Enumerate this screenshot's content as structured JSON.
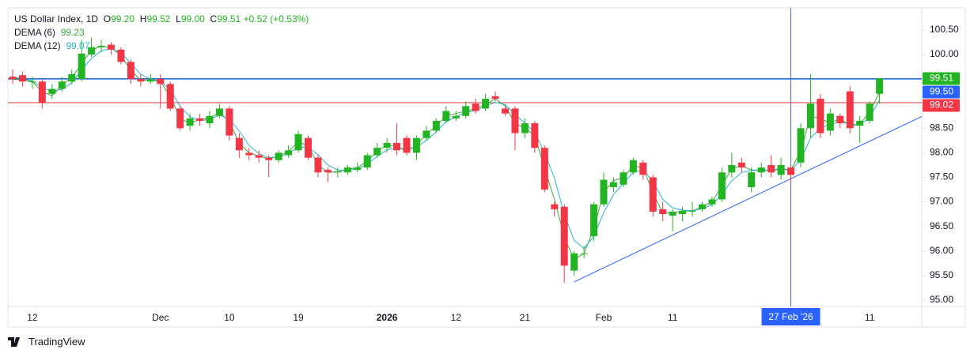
{
  "chart_data": {
    "type": "candlestick",
    "header": {
      "symbol": "US Dollar Index, 1D",
      "open_label": "O",
      "open": "99.20",
      "high_label": "H",
      "high": "99.52",
      "low_label": "L",
      "low": "99.00",
      "close_label": "C",
      "close": "99.51",
      "change": "+0.52 (+0.53%)"
    },
    "categories": [
      null,
      null,
      "12",
      null,
      null,
      null,
      null,
      null,
      null,
      null,
      null,
      null,
      null,
      null,
      null,
      "Dec",
      null,
      null,
      null,
      null,
      null,
      null,
      "10",
      null,
      null,
      null,
      null,
      null,
      null,
      "19",
      null,
      null,
      null,
      null,
      null,
      null,
      null,
      null,
      "2026",
      null,
      null,
      null,
      null,
      null,
      null,
      "12",
      null,
      null,
      null,
      null,
      null,
      null,
      "21",
      null,
      null,
      null,
      null,
      null,
      null,
      null,
      "Feb",
      null,
      null,
      null,
      null,
      null,
      null,
      "11",
      null,
      null,
      null,
      null,
      null,
      null,
      null,
      null,
      null,
      null,
      null,
      "27 Feb '26",
      null,
      null,
      null,
      null,
      null,
      null,
      null,
      "11",
      null
    ],
    "open": [
      99.55,
      99.58,
      99.45,
      99.45,
      99.2,
      99.3,
      99.45,
      99.5,
      100.0,
      100.15,
      100.2,
      100.1,
      99.85,
      99.5,
      99.45,
      99.5,
      99.4,
      98.9,
      98.55,
      98.7,
      98.6,
      98.75,
      98.9,
      98.3,
      98.0,
      97.95,
      97.9,
      97.85,
      97.95,
      98.05,
      98.3,
      97.9,
      97.65,
      97.6,
      97.6,
      97.65,
      97.7,
      97.95,
      98.1,
      98.2,
      98.3,
      98.0,
      98.3,
      98.45,
      98.65,
      98.7,
      98.75,
      99.0,
      98.9,
      99.15,
      98.9,
      98.9,
      98.4,
      98.6,
      98.1,
      96.95,
      96.9,
      95.6,
      95.95,
      96.3,
      96.95,
      97.3,
      97.35,
      97.6,
      97.8,
      97.5,
      96.85,
      96.72,
      96.75,
      96.8,
      96.85,
      96.95,
      97.05,
      97.6,
      97.8,
      97.3,
      97.6,
      97.75,
      97.55,
      97.7,
      97.8,
      98.5,
      99.1,
      98.45,
      98.75,
      99.25,
      98.55,
      98.65,
      99.2
    ],
    "high": [
      99.7,
      99.65,
      99.55,
      99.5,
      99.4,
      99.55,
      99.7,
      100.3,
      100.35,
      100.3,
      100.25,
      100.15,
      99.9,
      99.6,
      99.6,
      99.6,
      99.45,
      98.95,
      98.8,
      98.8,
      98.85,
      99.0,
      98.95,
      98.4,
      98.1,
      98.05,
      97.95,
      98.05,
      98.15,
      98.45,
      98.35,
      97.95,
      97.7,
      97.7,
      97.75,
      97.8,
      98.0,
      98.2,
      98.3,
      98.6,
      98.35,
      98.35,
      98.55,
      98.7,
      98.95,
      98.85,
      99.05,
      99.1,
      99.2,
      99.25,
      98.95,
      98.95,
      98.7,
      98.65,
      98.15,
      97.0,
      96.95,
      96.0,
      96.1,
      97.0,
      97.6,
      97.5,
      97.65,
      97.9,
      97.85,
      97.55,
      97.0,
      96.85,
      96.9,
      97.0,
      97.0,
      97.1,
      97.7,
      98.0,
      97.9,
      97.7,
      97.8,
      97.95,
      97.9,
      97.75,
      98.6,
      99.6,
      99.2,
      98.9,
      98.8,
      99.35,
      98.75,
      99.05,
      99.52
    ],
    "low": [
      99.4,
      99.35,
      99.3,
      98.9,
      99.1,
      99.25,
      99.4,
      99.45,
      99.95,
      100.05,
      100.0,
      99.8,
      99.4,
      99.35,
      99.4,
      98.9,
      98.85,
      98.45,
      98.45,
      98.55,
      98.5,
      98.7,
      98.25,
      97.9,
      97.85,
      97.8,
      97.5,
      97.8,
      97.9,
      98.0,
      97.85,
      97.5,
      97.4,
      97.5,
      97.55,
      97.6,
      97.65,
      97.9,
      98.0,
      97.95,
      97.95,
      97.85,
      98.25,
      98.4,
      98.6,
      98.65,
      98.7,
      98.8,
      98.85,
      99.05,
      98.75,
      98.05,
      98.3,
      98.0,
      97.2,
      96.7,
      95.35,
      95.5,
      95.85,
      96.2,
      96.9,
      97.2,
      97.3,
      97.55,
      97.45,
      96.7,
      96.6,
      96.4,
      96.6,
      96.7,
      96.8,
      96.9,
      97.0,
      97.5,
      97.6,
      97.2,
      97.5,
      97.5,
      97.45,
      97.4,
      97.7,
      98.3,
      98.3,
      98.35,
      98.5,
      98.4,
      98.2,
      98.6,
      99.0
    ],
    "close": [
      99.5,
      99.45,
      99.45,
      99.02,
      99.3,
      99.45,
      99.6,
      100.02,
      100.15,
      100.18,
      100.1,
      99.85,
      99.5,
      99.45,
      99.5,
      99.4,
      98.9,
      98.5,
      98.7,
      98.65,
      98.75,
      98.9,
      98.35,
      98.05,
      97.95,
      97.9,
      97.85,
      98.0,
      98.05,
      98.38,
      97.9,
      97.6,
      97.6,
      97.62,
      97.7,
      97.7,
      97.95,
      98.1,
      98.2,
      98.05,
      98.0,
      98.3,
      98.45,
      98.65,
      98.85,
      98.75,
      98.95,
      98.85,
      99.1,
      99.1,
      98.8,
      98.4,
      98.6,
      98.1,
      97.25,
      96.85,
      95.7,
      95.95,
      95.95,
      96.95,
      97.45,
      97.4,
      97.6,
      97.85,
      97.55,
      96.8,
      96.75,
      96.8,
      96.82,
      96.82,
      96.95,
      97.05,
      97.6,
      97.75,
      97.7,
      97.6,
      97.7,
      97.6,
      97.75,
      97.55,
      98.5,
      99.0,
      98.4,
      98.8,
      98.6,
      98.5,
      98.65,
      99.0,
      99.51
    ],
    "up_color": "#22b422",
    "down_color": "#f23645",
    "series": [
      {
        "name": "DEMA (6)",
        "color": "#3fa83f",
        "values": [
          99.5,
          99.48,
          99.45,
          99.24,
          99.16,
          99.38,
          99.53,
          99.81,
          100.09,
          100.17,
          100.14,
          99.98,
          99.68,
          99.48,
          99.48,
          99.45,
          99.15,
          98.7,
          98.6,
          98.68,
          98.7,
          98.83,
          98.63,
          98.2,
          98.0,
          97.93,
          97.88,
          97.93,
          98.03,
          98.22,
          98.14,
          97.75,
          97.6,
          97.61,
          97.66,
          97.7,
          97.83,
          98.03,
          98.15,
          98.13,
          98.03,
          98.15,
          98.38,
          98.55,
          98.75,
          98.8,
          98.85,
          98.9,
          98.98,
          99.1,
          98.95,
          98.6,
          98.5,
          98.35,
          97.68,
          97.05,
          96.28,
          95.83,
          95.95,
          96.45,
          97.2,
          97.43,
          97.5,
          97.73,
          97.7,
          97.18,
          96.78,
          96.78,
          96.81,
          96.82,
          96.89,
          97.0,
          97.33,
          97.68,
          97.73,
          97.65,
          97.65,
          97.65,
          97.68,
          97.65,
          98.03,
          98.75,
          98.7,
          98.6,
          98.7,
          98.55,
          98.58,
          98.83,
          99.23
        ]
      },
      {
        "name": "DEMA (12)",
        "color": "#26b5cf",
        "values": [
          99.55,
          99.5,
          99.47,
          99.32,
          99.26,
          99.29,
          99.42,
          99.69,
          99.92,
          100.08,
          100.12,
          100.04,
          99.82,
          99.6,
          99.5,
          99.46,
          99.28,
          98.95,
          98.73,
          98.65,
          98.68,
          98.77,
          98.68,
          98.45,
          98.15,
          97.98,
          97.9,
          97.92,
          97.98,
          98.12,
          98.11,
          97.96,
          97.75,
          97.65,
          97.64,
          97.67,
          97.77,
          97.92,
          98.06,
          98.1,
          98.08,
          98.12,
          98.25,
          98.43,
          98.63,
          98.73,
          98.82,
          98.86,
          98.95,
          99.03,
          98.98,
          98.78,
          98.6,
          98.42,
          98.0,
          97.48,
          96.75,
          96.22,
          96.05,
          96.3,
          96.78,
          97.15,
          97.38,
          97.6,
          97.65,
          97.42,
          97.05,
          96.88,
          96.83,
          96.82,
          96.86,
          96.94,
          97.15,
          97.43,
          97.6,
          97.64,
          97.64,
          97.64,
          97.66,
          97.65,
          97.85,
          98.3,
          98.5,
          98.58,
          98.63,
          98.58,
          98.57,
          98.72,
          99.07
        ]
      }
    ],
    "price_lines": [
      {
        "value": 99.51,
        "label": "99.51",
        "color": "#22b422",
        "line_color": "#2a7d8c"
      },
      {
        "value": 99.5,
        "label": "99.50",
        "color": "#2962ff",
        "line_color": "#2962ff"
      },
      {
        "value": 99.02,
        "label": "99.02",
        "color": "#f23645",
        "line_color": "#d83a3a"
      }
    ],
    "crosshair_index": 79,
    "trendline": {
      "start": 95.37,
      "end": 98.74,
      "color": "#2962ff"
    },
    "ylim": [
      94.87,
      100.95
    ],
    "yticks": [
      {
        "value": 95,
        "label": "95.00"
      },
      {
        "value": 95.5,
        "label": "95.50"
      },
      {
        "value": 96,
        "label": "96.00"
      },
      {
        "value": 96.5,
        "label": "96.50"
      },
      {
        "value": 97,
        "label": "97.00"
      },
      {
        "value": 97.5,
        "label": "97.50"
      },
      {
        "value": 98,
        "label": "98.00"
      },
      {
        "value": 98.5,
        "label": "98.50"
      },
      {
        "value": 99,
        "label": "99.00"
      },
      {
        "value": 99.5,
        "label": "99.50"
      },
      {
        "value": 100,
        "label": "100.00"
      },
      {
        "value": 100.5,
        "label": "100.50"
      }
    ],
    "grid": false
  },
  "branding": "TradingView"
}
